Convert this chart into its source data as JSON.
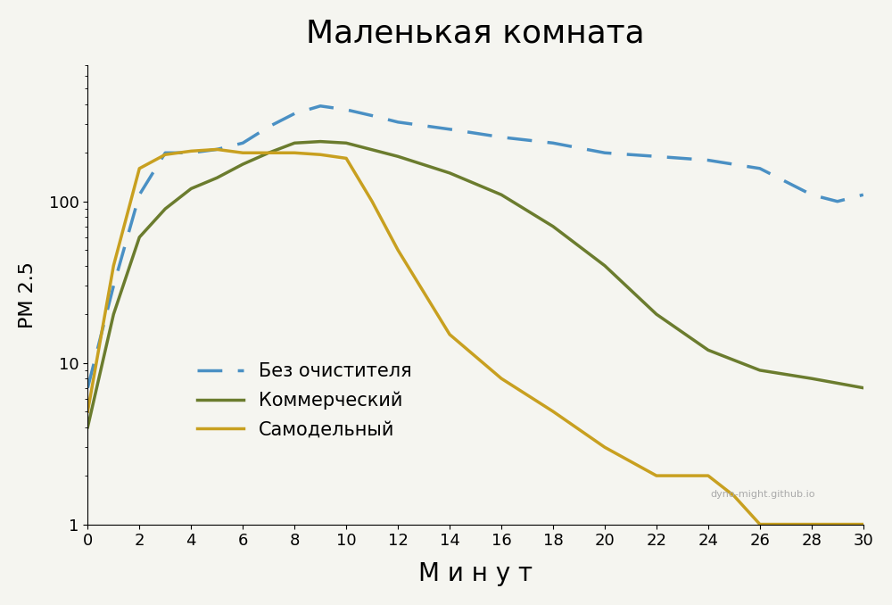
{
  "title": "Маленькая комната",
  "xlabel": "М и н у т",
  "ylabel": "РМ 2.5",
  "background_color": "#f5f5f0",
  "xlim": [
    0,
    30
  ],
  "ylim": [
    1,
    700
  ],
  "xticks": [
    0,
    2,
    4,
    6,
    8,
    10,
    12,
    14,
    16,
    18,
    20,
    22,
    24,
    26,
    28,
    30
  ],
  "yticks": [
    1,
    10,
    100
  ],
  "watermark": "dyno-might.github.io",
  "series": [
    {
      "label": "Без очистителя",
      "color": "#4a90c4",
      "linestyle": "dashed",
      "linewidth": 2.5,
      "x": [
        0,
        1,
        2,
        3,
        4,
        5,
        6,
        7,
        8,
        9,
        10,
        11,
        12,
        14,
        16,
        18,
        20,
        22,
        24,
        26,
        28,
        29,
        30
      ],
      "y": [
        7,
        30,
        110,
        200,
        200,
        210,
        230,
        290,
        350,
        390,
        370,
        340,
        310,
        280,
        250,
        230,
        200,
        190,
        180,
        160,
        110,
        100,
        110
      ]
    },
    {
      "label": "Коммерческий",
      "color": "#6b7c2e",
      "linestyle": "solid",
      "linewidth": 2.5,
      "x": [
        0,
        1,
        2,
        3,
        4,
        5,
        6,
        7,
        8,
        9,
        10,
        12,
        14,
        16,
        18,
        20,
        22,
        24,
        26,
        28,
        30
      ],
      "y": [
        4,
        20,
        60,
        90,
        120,
        140,
        170,
        200,
        230,
        235,
        230,
        190,
        150,
        110,
        70,
        40,
        20,
        12,
        9,
        8,
        7
      ]
    },
    {
      "label": "Самодельный",
      "color": "#c8a020",
      "linestyle": "solid",
      "linewidth": 2.5,
      "x": [
        0,
        1,
        2,
        3,
        4,
        5,
        6,
        7,
        8,
        9,
        10,
        11,
        12,
        14,
        16,
        18,
        20,
        22,
        24,
        25,
        26,
        28,
        30
      ],
      "y": [
        5,
        40,
        160,
        195,
        205,
        210,
        200,
        200,
        200,
        195,
        185,
        100,
        50,
        15,
        8,
        5,
        3,
        2,
        2,
        1.5,
        1,
        1,
        1
      ]
    }
  ]
}
